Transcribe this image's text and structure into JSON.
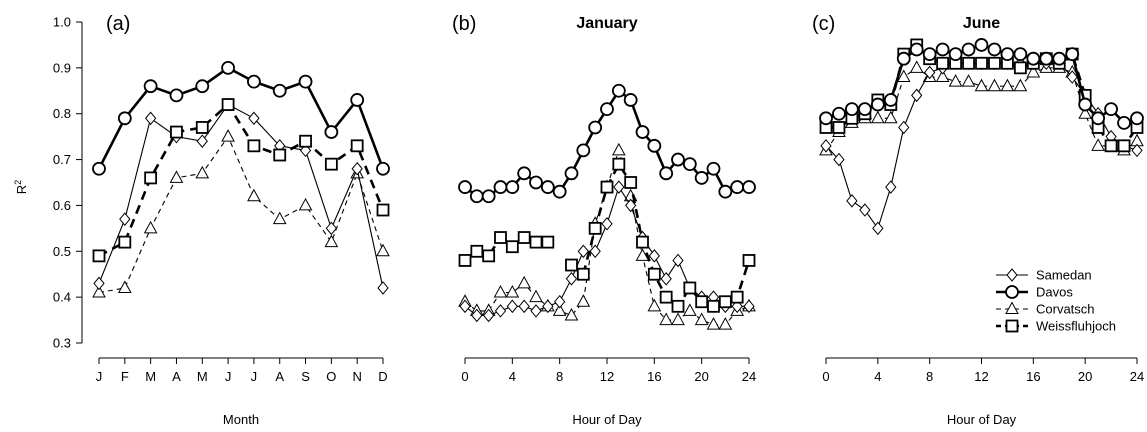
{
  "figure": {
    "ylabel": "R",
    "ylabel_sup": "2",
    "legend_position": "bottom-right of panel (c)"
  },
  "series_styles": [
    {
      "name": "Samedan",
      "marker": "diamond",
      "dash": "solid",
      "weight": "thin"
    },
    {
      "name": "Davos",
      "marker": "circle",
      "dash": "solid",
      "weight": "thick"
    },
    {
      "name": "Corvatsch",
      "marker": "triangle",
      "dash": "dashed",
      "weight": "thin"
    },
    {
      "name": "Weissfluhjoch",
      "marker": "square",
      "dash": "dashed",
      "weight": "thick"
    }
  ],
  "chart_data": [
    {
      "type": "line",
      "panel_label": "(a)",
      "title": "",
      "xlabel": "Month",
      "ylabel": "R2",
      "ylim": [
        0.3,
        1.0
      ],
      "yticks": [
        0.3,
        0.4,
        0.5,
        0.6,
        0.7,
        0.8,
        0.9,
        1.0
      ],
      "ytick_labels": [
        "0.3",
        "0.4",
        "0.5",
        "0.6",
        "0.7",
        "0.8",
        "0.9",
        "1.0"
      ],
      "xlim": [
        1,
        12
      ],
      "xticks": [
        1,
        2,
        3,
        4,
        5,
        6,
        7,
        8,
        9,
        10,
        11,
        12
      ],
      "xtick_labels": [
        "J",
        "F",
        "M",
        "A",
        "M",
        "J",
        "J",
        "A",
        "S",
        "O",
        "N",
        "D"
      ],
      "x": [
        1,
        2,
        3,
        4,
        5,
        6,
        7,
        8,
        9,
        10,
        11,
        12
      ],
      "series": [
        {
          "name": "Samedan",
          "values": [
            0.43,
            0.57,
            0.79,
            0.75,
            0.74,
            0.82,
            0.79,
            0.73,
            0.72,
            0.55,
            0.68,
            0.42
          ]
        },
        {
          "name": "Davos",
          "values": [
            0.68,
            0.79,
            0.86,
            0.84,
            0.86,
            0.9,
            0.87,
            0.85,
            0.87,
            0.76,
            0.83,
            0.68
          ]
        },
        {
          "name": "Corvatsch",
          "values": [
            0.41,
            0.42,
            0.55,
            0.66,
            0.67,
            0.75,
            0.62,
            0.57,
            0.6,
            0.52,
            0.67,
            0.5
          ]
        },
        {
          "name": "Weissfluhjoch",
          "values": [
            0.49,
            0.52,
            0.66,
            0.76,
            0.77,
            0.82,
            0.73,
            0.71,
            0.74,
            0.69,
            0.73,
            0.59
          ]
        }
      ]
    },
    {
      "type": "line",
      "panel_label": "(b)",
      "title": "January",
      "xlabel": "Hour of Day",
      "ylim": [
        0.3,
        1.0
      ],
      "xlim": [
        0,
        24
      ],
      "xticks": [
        0,
        4,
        8,
        12,
        16,
        20,
        24
      ],
      "xtick_labels": [
        "0",
        "4",
        "8",
        "12",
        "16",
        "20",
        "24"
      ],
      "x": [
        0,
        1,
        2,
        3,
        4,
        5,
        6,
        7,
        8,
        9,
        10,
        11,
        12,
        13,
        14,
        15,
        16,
        17,
        18,
        19,
        20,
        21,
        22,
        23,
        24
      ],
      "series": [
        {
          "name": "Samedan",
          "values": [
            0.38,
            0.36,
            0.36,
            0.37,
            0.38,
            0.38,
            0.37,
            0.38,
            0.39,
            0.44,
            0.5,
            0.5,
            0.56,
            0.64,
            0.6,
            0.53,
            0.49,
            0.44,
            0.48,
            0.42,
            0.4,
            0.4,
            0.38,
            0.38,
            0.38
          ]
        },
        {
          "name": "Davos",
          "values": [
            0.64,
            0.62,
            0.62,
            0.64,
            0.64,
            0.67,
            0.65,
            0.64,
            0.63,
            0.67,
            0.72,
            0.77,
            0.81,
            0.85,
            0.83,
            0.76,
            0.73,
            0.67,
            0.7,
            0.69,
            0.66,
            0.68,
            0.63,
            0.64,
            0.64
          ]
        },
        {
          "name": "Corvatsch",
          "values": [
            0.39,
            0.37,
            0.37,
            0.41,
            0.41,
            0.43,
            0.4,
            0.38,
            0.37,
            0.36,
            0.39,
            0.56,
            0.64,
            0.72,
            0.62,
            0.49,
            0.38,
            0.35,
            0.35,
            0.37,
            0.35,
            0.34,
            0.34,
            0.37,
            0.38
          ]
        },
        {
          "name": "Weissfluhjoch",
          "values": [
            0.48,
            0.5,
            0.49,
            0.53,
            0.51,
            0.53,
            0.52,
            0.52,
            null,
            0.47,
            0.45,
            0.55,
            0.64,
            0.69,
            0.65,
            0.52,
            0.45,
            0.4,
            0.38,
            0.42,
            0.39,
            0.38,
            0.39,
            0.4,
            0.48
          ]
        }
      ]
    },
    {
      "type": "line",
      "panel_label": "(c)",
      "title": "June",
      "xlabel": "Hour of Day",
      "ylim": [
        0.3,
        1.0
      ],
      "xlim": [
        0,
        24
      ],
      "xticks": [
        0,
        4,
        8,
        12,
        16,
        20,
        24
      ],
      "xtick_labels": [
        "0",
        "4",
        "8",
        "12",
        "16",
        "20",
        "24"
      ],
      "x": [
        0,
        1,
        2,
        3,
        4,
        5,
        6,
        7,
        8,
        9,
        10,
        11,
        12,
        13,
        14,
        15,
        16,
        17,
        18,
        19,
        20,
        21,
        22,
        23,
        24
      ],
      "series": [
        {
          "name": "Samedan",
          "values": [
            0.73,
            0.7,
            0.61,
            0.59,
            0.55,
            0.64,
            0.77,
            0.84,
            0.89,
            0.9,
            0.91,
            0.91,
            0.91,
            0.91,
            0.91,
            0.91,
            0.91,
            0.91,
            0.91,
            0.88,
            0.84,
            0.8,
            0.75,
            0.73,
            0.72
          ]
        },
        {
          "name": "Davos",
          "values": [
            0.79,
            0.8,
            0.81,
            0.81,
            0.82,
            0.83,
            0.92,
            0.94,
            0.93,
            0.94,
            0.93,
            0.94,
            0.95,
            0.94,
            0.93,
            0.93,
            0.92,
            0.92,
            0.92,
            0.93,
            0.82,
            0.79,
            0.81,
            0.78,
            0.79
          ]
        },
        {
          "name": "Corvatsch",
          "values": [
            0.72,
            0.76,
            0.78,
            0.79,
            0.79,
            0.79,
            0.88,
            0.9,
            0.88,
            0.88,
            0.87,
            0.87,
            0.86,
            0.86,
            0.86,
            0.86,
            0.89,
            0.9,
            0.9,
            0.89,
            0.8,
            0.73,
            0.73,
            0.72,
            0.74
          ]
        },
        {
          "name": "Weissfluhjoch",
          "values": [
            0.77,
            0.77,
            0.79,
            0.8,
            0.83,
            0.82,
            0.93,
            0.95,
            0.92,
            0.91,
            0.91,
            0.91,
            0.91,
            0.91,
            0.91,
            0.9,
            0.91,
            0.92,
            0.91,
            0.93,
            0.84,
            0.77,
            0.73,
            0.73,
            0.77
          ]
        }
      ]
    }
  ]
}
